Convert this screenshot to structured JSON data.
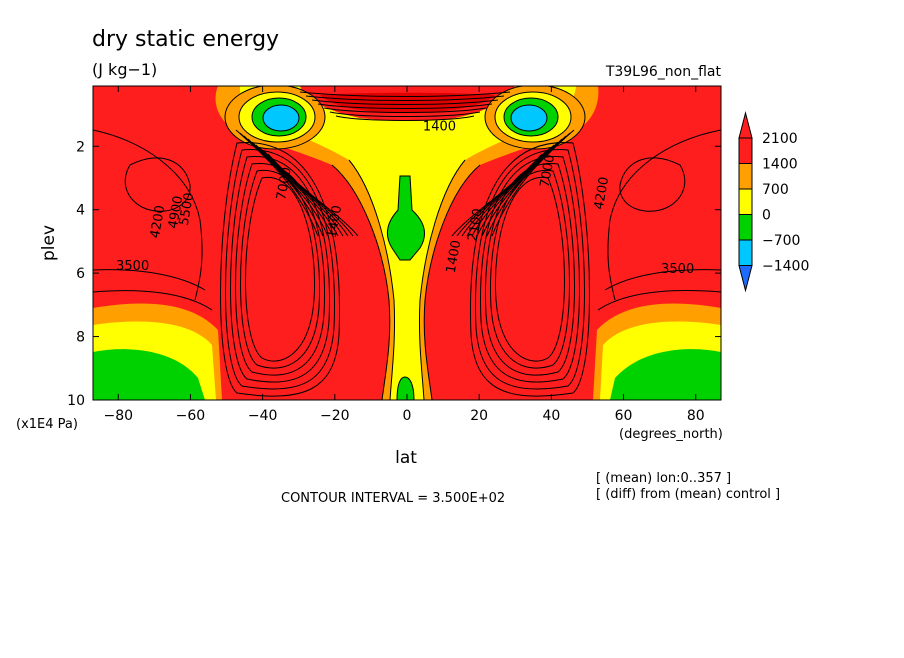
{
  "chart_data": {
    "type": "heatmap",
    "title": "dry static energy",
    "units": "(J kg−1)",
    "experiment": "T39L96_non_flat",
    "xlabel": "lat",
    "ylabel": "plev",
    "x_unit": "(degrees_north)",
    "y_unit": "(x1E4 Pa)",
    "xlim": [
      -87,
      87
    ],
    "ylim": [
      10,
      0.1
    ],
    "xticks": [
      -80,
      -60,
      -40,
      -20,
      0,
      20,
      40,
      60,
      80
    ],
    "xtick_labels": [
      "−80",
      "−60",
      "−40",
      "−20",
      "0",
      "20",
      "40",
      "60",
      "80"
    ],
    "yticks": [
      2,
      4,
      6,
      8,
      10
    ],
    "ytick_labels": [
      "2",
      "4",
      "6",
      "8",
      "10"
    ],
    "colorbar": {
      "levels": [
        -1400,
        -700,
        0,
        700,
        1400,
        2100
      ],
      "labels": [
        "−1400",
        "−700",
        "0",
        "700",
        "1400",
        "2100"
      ],
      "colors": [
        "#1e6cff",
        "#00c8ff",
        "#00d200",
        "#ffff00",
        "#ffa000",
        "#ff1e1e",
        "#ff1e1e"
      ]
    },
    "contour_labels": [
      {
        "text": "4200",
        "lat": -68,
        "plev": 4.4
      },
      {
        "text": "4900",
        "lat": -63,
        "plev": 4.1
      },
      {
        "text": "5500",
        "lat": -60,
        "plev": 4.0
      },
      {
        "text": "3500",
        "lat": -76,
        "plev": 5.9
      },
      {
        "text": "7000",
        "lat": -33,
        "plev": 3.2
      },
      {
        "text": "1400",
        "lat": -19,
        "plev": 4.4
      },
      {
        "text": "1400",
        "lat": 14,
        "plev": 5.5
      },
      {
        "text": "1400",
        "lat": 9,
        "plev": 1.5
      },
      {
        "text": "7000",
        "lat": 40,
        "plev": 2.8
      },
      {
        "text": "2100",
        "lat": 20,
        "plev": 4.5
      },
      {
        "text": "4200",
        "lat": 55,
        "plev": 3.5
      },
      {
        "text": "3500",
        "lat": 75,
        "plev": 6.0
      }
    ],
    "contour_interval_text": "CONTOUR INTERVAL = 3.500E+02",
    "notes": [
      "[ (mean) lon:0..357 ]",
      "[ (diff) from (mean) control ]"
    ],
    "grid": false,
    "legend_position": "right"
  }
}
